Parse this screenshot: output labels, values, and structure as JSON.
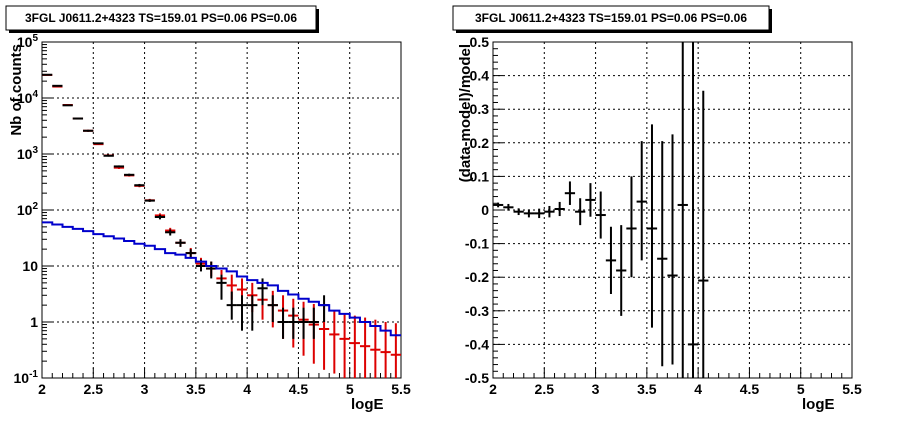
{
  "chart_data": [
    {
      "type": "scatter",
      "title": "3FGL J0611.2+4323 TS=159.01 PS=0.06 PS=0.06",
      "xlabel": "logE",
      "ylabel": "Nb of counts",
      "xlim": [
        2,
        5.5
      ],
      "ylim": [
        0.1,
        100000
      ],
      "yscale": "log",
      "grid": true,
      "x_ticks": [
        "2",
        "2.5",
        "3",
        "3.5",
        "4",
        "4.5",
        "5",
        "5.5"
      ],
      "y_ticks": [
        "10^-1",
        "1",
        "10",
        "10^2",
        "10^3",
        "10^4",
        "10^5"
      ],
      "x_bin_edges": [
        2.0,
        2.1,
        2.2,
        2.3,
        2.4,
        2.5,
        2.6,
        2.7,
        2.8,
        2.9,
        3.0,
        3.1,
        3.2,
        3.3,
        3.4,
        3.5,
        3.6,
        3.7,
        3.8,
        3.9,
        4.0,
        4.1,
        4.2,
        4.3,
        4.4,
        4.5,
        4.6,
        4.7,
        4.8,
        4.9,
        5.0,
        5.1,
        5.2,
        5.3,
        5.4,
        5.5
      ],
      "series": [
        {
          "color": "#000000",
          "x": [
            2.05,
            2.15,
            2.25,
            2.35,
            2.45,
            2.55,
            2.65,
            2.75,
            2.85,
            2.95,
            3.05,
            3.15,
            3.25,
            3.35,
            3.45,
            3.55,
            3.65,
            3.75,
            3.85,
            3.95,
            4.05,
            4.15,
            4.25,
            4.35,
            4.45,
            4.55,
            4.65,
            4.75
          ],
          "y": [
            26000,
            16500,
            7400,
            4300,
            2600,
            1550,
            930,
            600,
            425,
            277,
            147,
            75,
            40,
            26,
            17,
            10,
            9,
            5,
            2,
            2,
            2,
            4,
            2,
            1,
            1,
            1,
            1,
            2
          ],
          "y_low": [
            25600,
            16100,
            7250,
            4200,
            2500,
            1500,
            900,
            575,
            405,
            262,
            140,
            68,
            35,
            22,
            14,
            8,
            6,
            2.5,
            1.1,
            0.7,
            0.7,
            2,
            1,
            0.5,
            0.5,
            0.5,
            0.5,
            1
          ],
          "y_high": [
            26500,
            17000,
            7550,
            4400,
            2700,
            1600,
            960,
            625,
            445,
            292,
            155,
            82,
            45,
            30,
            20,
            13,
            12,
            7,
            3.5,
            3,
            3,
            6,
            3,
            1.8,
            1.8,
            1.8,
            1.8,
            3
          ]
        },
        {
          "color": "#dd0000",
          "x": [
            2.05,
            2.15,
            2.25,
            2.35,
            2.45,
            2.55,
            2.65,
            2.75,
            2.85,
            2.95,
            3.05,
            3.15,
            3.25,
            3.35,
            3.45,
            3.55,
            3.65,
            3.75,
            3.85,
            3.95,
            4.05,
            4.15,
            4.25,
            4.35,
            4.45,
            4.55,
            4.65,
            4.75,
            4.85,
            4.95,
            5.05,
            5.15,
            5.25,
            5.35,
            5.45
          ],
          "y": [
            25800,
            16000,
            7500,
            4300,
            2600,
            1500,
            940,
            570,
            415,
            270,
            149,
            80,
            43,
            26,
            17,
            11,
            9,
            6,
            4.5,
            3.8,
            3,
            2.5,
            2,
            1.6,
            1.3,
            1.1,
            0.9,
            0.75,
            0.6,
            0.5,
            0.42,
            0.37,
            0.32,
            0.29,
            0.26
          ],
          "y_low": [
            25200,
            15600,
            7300,
            4150,
            2500,
            1450,
            900,
            540,
            395,
            255,
            140,
            73,
            38,
            22,
            13.5,
            8.5,
            6.5,
            3.5,
            2.5,
            2,
            1.5,
            1.1,
            0.8,
            0.5,
            0.35,
            0.25,
            0.18,
            0.14,
            0.12,
            0.1,
            0.1,
            0.1,
            0.1,
            0.1,
            0.1
          ],
          "y_high": [
            26400,
            16400,
            7700,
            4450,
            2700,
            1550,
            980,
            600,
            435,
            285,
            158,
            87,
            48,
            30,
            21,
            14,
            12,
            8.5,
            7,
            6,
            5,
            4.2,
            3.6,
            3,
            2.6,
            2.3,
            2.1,
            1.9,
            1.6,
            1.45,
            1.3,
            1.2,
            1.1,
            1.0,
            0.95
          ]
        },
        {
          "type": "step",
          "color": "#0000cc",
          "values": [
            60,
            55,
            50,
            46,
            42,
            37,
            34,
            31,
            28,
            25,
            23,
            20,
            17,
            16,
            14,
            12,
            10,
            9,
            8,
            6.5,
            5.6,
            5,
            4.5,
            3.6,
            3.1,
            2.6,
            2.3,
            2.0,
            1.6,
            1.4,
            1.2,
            1.0,
            0.85,
            0.7,
            0.58
          ]
        }
      ]
    },
    {
      "type": "scatter",
      "title": "3FGL J0611.2+4323 TS=159.01 PS=0.06 PS=0.06",
      "xlabel": "logE",
      "ylabel": "(data-model)/model",
      "xlim": [
        2,
        5.5
      ],
      "ylim": [
        -0.5,
        0.5
      ],
      "grid": true,
      "x_ticks": [
        "2",
        "2.5",
        "3",
        "3.5",
        "4",
        "4.5",
        "5",
        "5.5"
      ],
      "y_ticks": [
        "-0.5",
        "-0.4",
        "-0.3",
        "-0.2",
        "-0.1",
        "0",
        "0.1",
        "0.2",
        "0.3",
        "0.4",
        "0.5"
      ],
      "series": [
        {
          "color": "#000000",
          "x": [
            2.05,
            2.15,
            2.25,
            2.35,
            2.45,
            2.55,
            2.65,
            2.75,
            2.85,
            2.95,
            3.05,
            3.15,
            3.25,
            3.35,
            3.45,
            3.55,
            3.65,
            3.75,
            3.85,
            3.95,
            4.05
          ],
          "y": [
            0.015,
            0.008,
            -0.005,
            -0.01,
            -0.01,
            -0.005,
            0.003,
            0.05,
            -0.005,
            0.03,
            -0.015,
            -0.15,
            -0.18,
            -0.055,
            0.025,
            -0.055,
            -0.145,
            -0.195,
            0.015,
            -0.4,
            -0.21
          ],
          "y_low": [
            0.008,
            -0.002,
            -0.015,
            -0.022,
            -0.024,
            -0.022,
            -0.018,
            0.015,
            -0.045,
            -0.02,
            -0.085,
            -0.25,
            -0.315,
            -0.2,
            -0.15,
            -0.35,
            -0.465,
            -0.46,
            -0.5,
            -0.5,
            -0.5
          ],
          "y_high": [
            0.022,
            0.018,
            0.005,
            0.002,
            0.004,
            0.012,
            0.024,
            0.085,
            0.035,
            0.08,
            0.055,
            -0.05,
            -0.045,
            0.1,
            0.205,
            0.255,
            0.205,
            0.225,
            0.5,
            0.5,
            0.355
          ],
          "x_half_width": 0.05
        }
      ]
    }
  ]
}
